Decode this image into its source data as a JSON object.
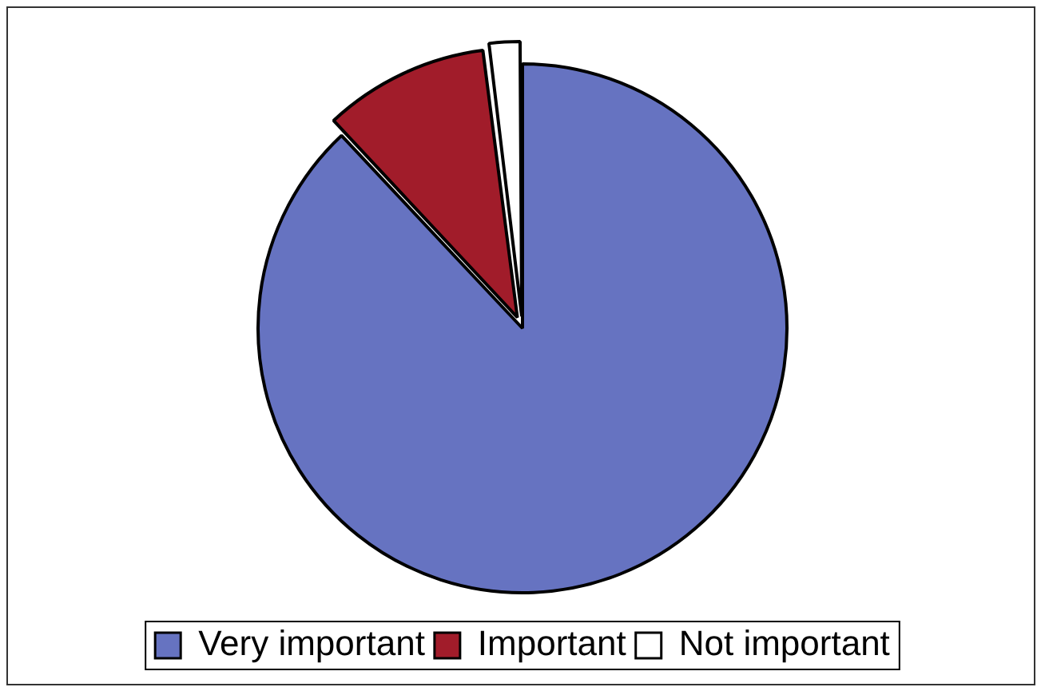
{
  "chart_data": {
    "type": "pie",
    "categories": [
      "Very important",
      "Important",
      "Not important"
    ],
    "values": [
      88,
      10,
      2
    ],
    "colors": [
      "#6673c1",
      "#a11c2a",
      "#ffffff"
    ],
    "legend": "bottom"
  }
}
